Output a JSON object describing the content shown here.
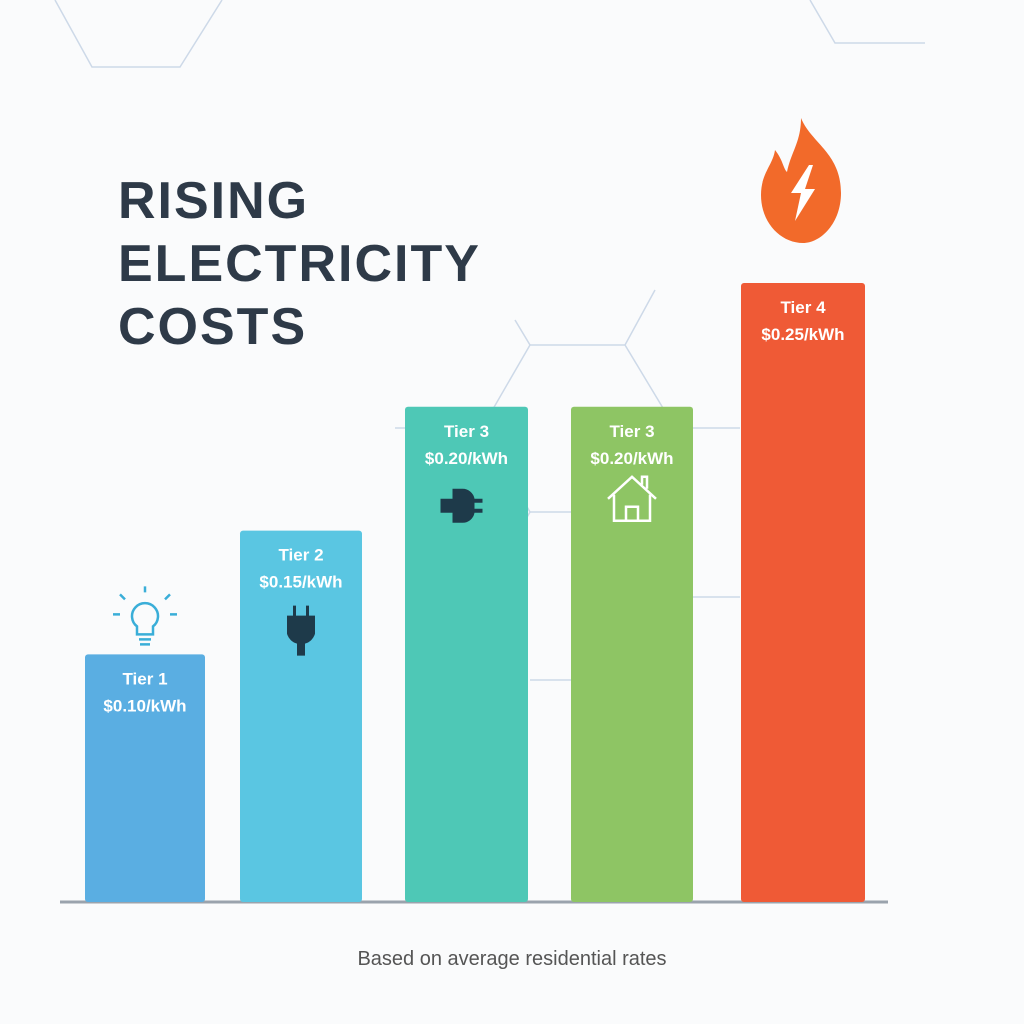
{
  "chart_data": {
    "type": "bar",
    "title": "RISING ELECTRICITY COSTS",
    "categories": [
      "Tier 1",
      "Tier 2",
      "Tier 3",
      "Tier 3",
      "Tier 4"
    ],
    "values": [
      0.1,
      0.15,
      0.2,
      0.2,
      0.25
    ],
    "value_labels": [
      "$0.10/kWh",
      "$0.15/kWh",
      "$0.20/kWh",
      "$0.20/kWh",
      "$0.25/kWh"
    ],
    "colors": [
      "#5aaee2",
      "#5ac6e2",
      "#4ec8b6",
      "#8ec564",
      "#ef5a36"
    ],
    "note": "Based on average residential rates"
  }
}
